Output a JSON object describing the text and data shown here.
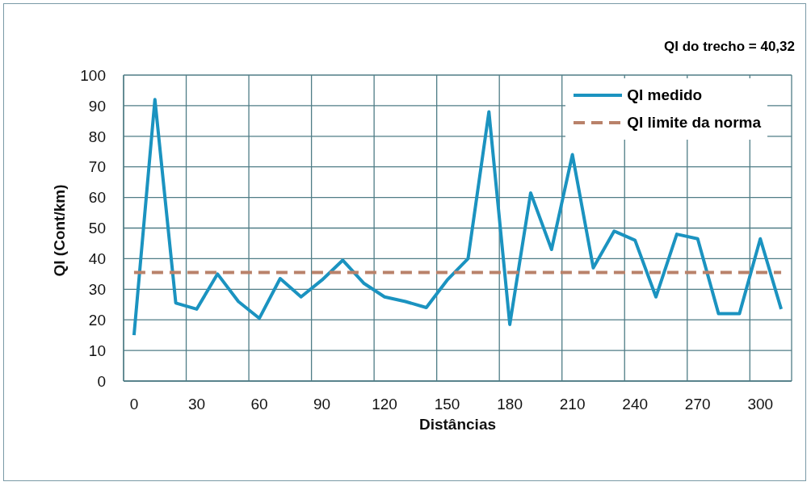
{
  "chart_data": {
    "type": "line",
    "xlabel": "Distâncias",
    "ylabel": "QI (Cont/km)",
    "annotations": [
      "QI do trecho = 40,32"
    ],
    "categories": [
      "0",
      null,
      null,
      "30",
      null,
      null,
      "60",
      null,
      null,
      "90",
      null,
      null,
      "120",
      null,
      null,
      "150",
      null,
      null,
      "180",
      null,
      null,
      "210",
      null,
      null,
      "240",
      null,
      null,
      "270",
      null,
      null,
      "300",
      null
    ],
    "series": [
      {
        "name": "QI medido",
        "color": "#1b93c0",
        "values": [
          15,
          92,
          25.5,
          23.5,
          35,
          26,
          20.5,
          33.5,
          27.5,
          33,
          39.5,
          32,
          27.5,
          26,
          24,
          33,
          40,
          88,
          18.5,
          61.5,
          43,
          74,
          37,
          49,
          46,
          27.5,
          48,
          46.5,
          22,
          22,
          46.5,
          23.5
        ]
      },
      {
        "name": "QI limite da norma",
        "color": "#b9826a",
        "line_style": "dashed",
        "values": [
          35.5,
          35.5,
          35.5,
          35.5,
          35.5,
          35.5,
          35.5,
          35.5,
          35.5,
          35.5,
          35.5,
          35.5,
          35.5,
          35.5,
          35.5,
          35.5,
          35.5,
          35.5,
          35.5,
          35.5,
          35.5,
          35.5,
          35.5,
          35.5,
          35.5,
          35.5,
          35.5,
          35.5,
          35.5,
          35.5,
          35.5,
          35.5
        ]
      }
    ],
    "ylim": [
      0,
      100
    ],
    "yticks": [
      0,
      10,
      20,
      30,
      40,
      50,
      60,
      70,
      80,
      90,
      100
    ],
    "grid": true,
    "legend": "top right",
    "marker": "none",
    "line_style": "solid"
  }
}
